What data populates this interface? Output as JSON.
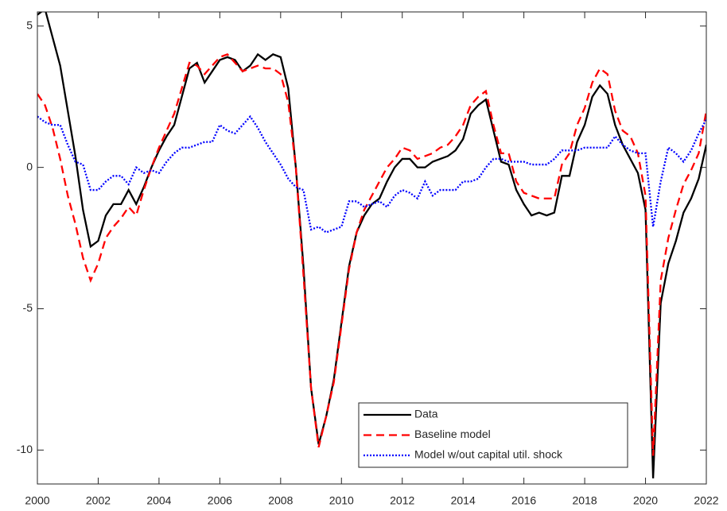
{
  "chart_data": {
    "type": "line",
    "x": [
      2000,
      2000.25,
      2000.5,
      2000.75,
      2001,
      2001.25,
      2001.5,
      2001.75,
      2002,
      2002.25,
      2002.5,
      2002.75,
      2003,
      2003.25,
      2003.5,
      2003.75,
      2004,
      2004.25,
      2004.5,
      2004.75,
      2005,
      2005.25,
      2005.5,
      2005.75,
      2006,
      2006.25,
      2006.5,
      2006.75,
      2007,
      2007.25,
      2007.5,
      2007.75,
      2008,
      2008.25,
      2008.5,
      2008.75,
      2009,
      2009.25,
      2009.5,
      2009.75,
      2010,
      2010.25,
      2010.5,
      2010.75,
      2011,
      2011.25,
      2011.5,
      2011.75,
      2012,
      2012.25,
      2012.5,
      2012.75,
      2013,
      2013.25,
      2013.5,
      2013.75,
      2014,
      2014.25,
      2014.5,
      2014.75,
      2015,
      2015.25,
      2015.5,
      2015.75,
      2016,
      2016.25,
      2016.5,
      2016.75,
      2017,
      2017.25,
      2017.5,
      2017.75,
      2018,
      2018.25,
      2018.5,
      2018.75,
      2019,
      2019.25,
      2019.5,
      2019.75,
      2020,
      2020.25,
      2020.5,
      2020.75,
      2021,
      2021.25,
      2021.5,
      2021.75,
      2022
    ],
    "series": [
      {
        "name": "Data",
        "color": "#000000",
        "dash": "solid",
        "values": [
          5.4,
          5.6,
          4.6,
          3.6,
          2.0,
          0.4,
          -1.5,
          -2.8,
          -2.6,
          -1.7,
          -1.3,
          -1.3,
          -0.8,
          -1.3,
          -0.7,
          0.0,
          0.6,
          1.1,
          1.5,
          2.5,
          3.5,
          3.7,
          3.0,
          3.4,
          3.8,
          3.9,
          3.8,
          3.4,
          3.6,
          4.0,
          3.8,
          4.0,
          3.9,
          2.8,
          0.0,
          -3.5,
          -7.8,
          -9.8,
          -8.8,
          -7.5,
          -5.5,
          -3.5,
          -2.3,
          -1.7,
          -1.3,
          -1.1,
          -0.5,
          0.0,
          0.3,
          0.3,
          0.0,
          0.0,
          0.2,
          0.3,
          0.4,
          0.6,
          1.0,
          1.9,
          2.2,
          2.4,
          1.3,
          0.2,
          0.1,
          -0.8,
          -1.3,
          -1.7,
          -1.6,
          -1.7,
          -1.6,
          -0.3,
          -0.3,
          0.9,
          1.5,
          2.5,
          2.9,
          2.6,
          1.5,
          0.8,
          0.3,
          -0.2,
          -1.5,
          -11.0,
          -4.8,
          -3.4,
          -2.6,
          -1.6,
          -1.1,
          -0.4,
          0.8
        ]
      },
      {
        "name": "Baseline model",
        "color": "#ff0000",
        "dash": "dashed",
        "values": [
          2.6,
          2.2,
          1.4,
          0.3,
          -1.0,
          -2.0,
          -3.2,
          -4.0,
          -3.4,
          -2.5,
          -2.1,
          -1.8,
          -1.4,
          -1.7,
          -0.8,
          0.0,
          0.7,
          1.3,
          1.9,
          2.8,
          3.7,
          3.6,
          3.3,
          3.6,
          3.9,
          4.0,
          3.7,
          3.4,
          3.5,
          3.6,
          3.5,
          3.5,
          3.3,
          2.3,
          0.0,
          -3.8,
          -7.8,
          -9.9,
          -8.8,
          -7.6,
          -5.6,
          -3.6,
          -2.3,
          -1.5,
          -1.0,
          -0.5,
          0.0,
          0.3,
          0.7,
          0.6,
          0.3,
          0.4,
          0.5,
          0.7,
          0.8,
          1.1,
          1.5,
          2.2,
          2.5,
          2.7,
          1.5,
          0.5,
          0.5,
          -0.5,
          -0.9,
          -1.0,
          -1.1,
          -1.1,
          -1.1,
          0.1,
          0.5,
          1.5,
          2.1,
          3.0,
          3.5,
          3.3,
          2.0,
          1.3,
          1.1,
          0.5,
          -1.0,
          -10.2,
          -4.0,
          -2.5,
          -1.5,
          -0.6,
          -0.1,
          0.5,
          2.0
        ]
      },
      {
        "name": "Model w/out capital util. shock",
        "color": "#0000ff",
        "dash": "dotted",
        "values": [
          1.8,
          1.6,
          1.5,
          1.5,
          0.8,
          0.2,
          0.1,
          -0.8,
          -0.8,
          -0.5,
          -0.3,
          -0.3,
          -0.6,
          0.0,
          -0.2,
          -0.1,
          -0.2,
          0.2,
          0.5,
          0.7,
          0.7,
          0.8,
          0.9,
          0.9,
          1.5,
          1.3,
          1.2,
          1.5,
          1.8,
          1.4,
          0.9,
          0.5,
          0.1,
          -0.4,
          -0.7,
          -0.8,
          -2.2,
          -2.1,
          -2.3,
          -2.2,
          -2.1,
          -1.2,
          -1.2,
          -1.4,
          -1.3,
          -1.2,
          -1.4,
          -1.0,
          -0.8,
          -0.9,
          -1.1,
          -0.5,
          -1.0,
          -0.8,
          -0.8,
          -0.8,
          -0.5,
          -0.5,
          -0.4,
          0.0,
          0.3,
          0.3,
          0.2,
          0.2,
          0.2,
          0.1,
          0.1,
          0.1,
          0.3,
          0.6,
          0.6,
          0.6,
          0.7,
          0.7,
          0.7,
          0.7,
          1.1,
          0.8,
          0.6,
          0.5,
          0.5,
          -2.1,
          -0.5,
          0.7,
          0.5,
          0.2,
          0.6,
          1.2,
          1.7
        ]
      }
    ],
    "xlim": [
      2000,
      2022
    ],
    "xticks": [
      2000,
      2002,
      2004,
      2006,
      2008,
      2010,
      2012,
      2014,
      2016,
      2018,
      2020,
      2022
    ],
    "ylim": [
      -11.2,
      5.5
    ],
    "yticks": [
      -10,
      -5,
      0,
      5
    ],
    "grid": false,
    "legend": "south"
  }
}
